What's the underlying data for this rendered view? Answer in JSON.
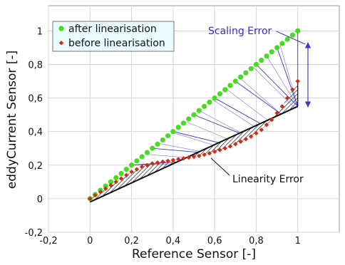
{
  "chart_data": {
    "type": "scatter",
    "title": "",
    "xlabel": "Reference Sensor [-]",
    "ylabel": "eddyCurrent Sensor [-]",
    "xlim": [
      -0.2,
      1.2
    ],
    "ylim": [
      -0.2,
      1.15
    ],
    "x_ticks": [
      -0.2,
      0,
      0.2,
      0.4,
      0.6,
      0.8,
      1
    ],
    "x_tick_labels": [
      "-0,2",
      "0",
      "0,2",
      "0,4",
      "0,6",
      "0,8",
      "1"
    ],
    "y_ticks": [
      -0.2,
      0,
      0.2,
      0.4,
      0.6,
      0.8,
      1
    ],
    "y_tick_labels": [
      "-0,2",
      "0",
      "0,2",
      "0,4",
      "0,6",
      "0,8",
      "1"
    ],
    "grid": true,
    "legend_position": "top-left",
    "series": [
      {
        "name": "after linearisation",
        "color": "#44dd1f",
        "marker": "circle",
        "x": [
          0.0,
          0.025,
          0.05,
          0.075,
          0.1,
          0.125,
          0.15,
          0.175,
          0.2,
          0.225,
          0.25,
          0.275,
          0.3,
          0.325,
          0.35,
          0.375,
          0.4,
          0.425,
          0.45,
          0.475,
          0.5,
          0.525,
          0.55,
          0.575,
          0.6,
          0.625,
          0.65,
          0.675,
          0.7,
          0.725,
          0.75,
          0.775,
          0.8,
          0.825,
          0.85,
          0.875,
          0.9,
          0.925,
          0.95,
          0.975,
          1.0
        ],
        "y": [
          0.0,
          0.025,
          0.05,
          0.075,
          0.1,
          0.125,
          0.15,
          0.175,
          0.2,
          0.225,
          0.25,
          0.275,
          0.3,
          0.325,
          0.35,
          0.375,
          0.4,
          0.425,
          0.45,
          0.475,
          0.5,
          0.525,
          0.55,
          0.575,
          0.6,
          0.625,
          0.65,
          0.675,
          0.7,
          0.725,
          0.75,
          0.775,
          0.8,
          0.825,
          0.85,
          0.875,
          0.9,
          0.925,
          0.95,
          0.975,
          1.0
        ]
      },
      {
        "name": "before linearisation",
        "color": "#d42a12",
        "marker": "diamond",
        "x": [
          0.0,
          0.025,
          0.05,
          0.075,
          0.1,
          0.125,
          0.15,
          0.175,
          0.2,
          0.225,
          0.25,
          0.275,
          0.3,
          0.325,
          0.35,
          0.375,
          0.4,
          0.425,
          0.45,
          0.475,
          0.5,
          0.525,
          0.55,
          0.575,
          0.6,
          0.625,
          0.65,
          0.675,
          0.7,
          0.725,
          0.75,
          0.775,
          0.8,
          0.825,
          0.85,
          0.875,
          0.9,
          0.925,
          0.95,
          0.975,
          1.0
        ],
        "y": [
          0.0,
          0.02,
          0.04,
          0.06,
          0.08,
          0.1,
          0.12,
          0.14,
          0.16,
          0.175,
          0.19,
          0.2,
          0.21,
          0.215,
          0.22,
          0.225,
          0.23,
          0.235,
          0.24,
          0.245,
          0.25,
          0.255,
          0.262,
          0.27,
          0.28,
          0.29,
          0.3,
          0.312,
          0.325,
          0.34,
          0.355,
          0.37,
          0.39,
          0.41,
          0.44,
          0.47,
          0.51,
          0.55,
          0.6,
          0.65,
          0.7
        ]
      }
    ],
    "reference_line": {
      "x": [
        0.0,
        1.0
      ],
      "y": [
        -0.02,
        0.55
      ]
    },
    "annotations": [
      {
        "text": "Scaling Error",
        "color": "#2f2fc4"
      },
      {
        "text": "Linearity Error",
        "color": "#111111"
      }
    ]
  }
}
